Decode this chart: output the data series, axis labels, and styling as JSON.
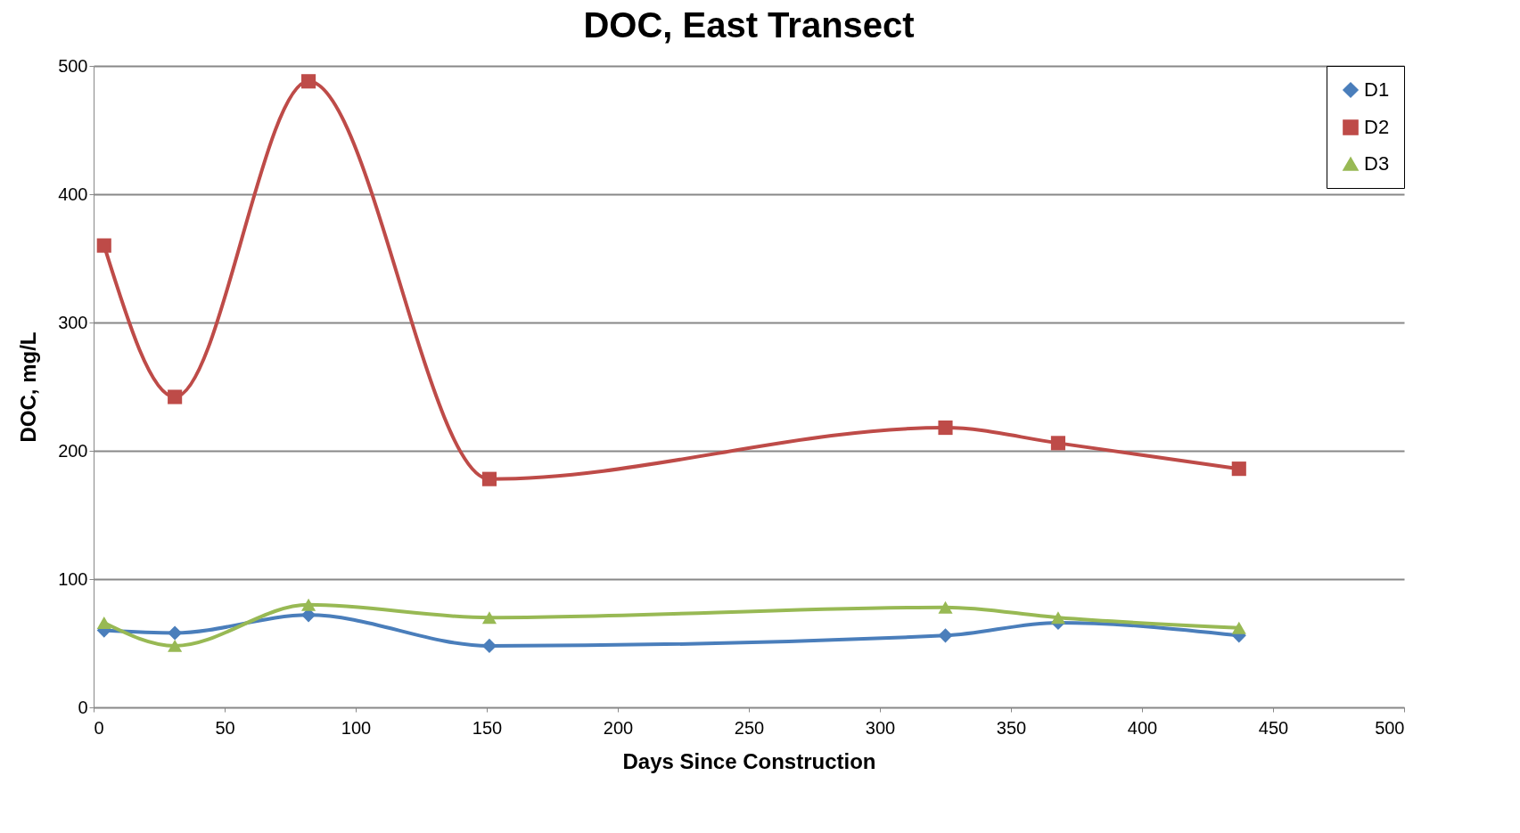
{
  "chart_data": {
    "type": "line",
    "title": "DOC, East Transect",
    "xlabel": "Days Since Construction",
    "ylabel": "DOC, mg/L",
    "x": [
      4,
      31,
      82,
      151,
      325,
      368,
      437
    ],
    "series": [
      {
        "name": "D1",
        "color": "#4a7ebb",
        "marker": "diamond",
        "values": [
          60,
          58,
          72,
          48,
          56,
          66,
          56
        ]
      },
      {
        "name": "D2",
        "color": "#be4b48",
        "marker": "square",
        "values": [
          360,
          242,
          488,
          178,
          218,
          206,
          186
        ]
      },
      {
        "name": "D3",
        "color": "#98b954",
        "marker": "triangle",
        "values": [
          66,
          48,
          80,
          70,
          78,
          70,
          62
        ]
      }
    ],
    "xlim": [
      0,
      500
    ],
    "xticks": [
      0,
      50,
      100,
      150,
      200,
      250,
      300,
      350,
      400,
      450,
      500
    ],
    "ylim": [
      0,
      500
    ],
    "yticks": [
      0,
      100,
      200,
      300,
      400,
      500
    ],
    "grid": "y",
    "legend": "top right",
    "line_style": "solid"
  }
}
